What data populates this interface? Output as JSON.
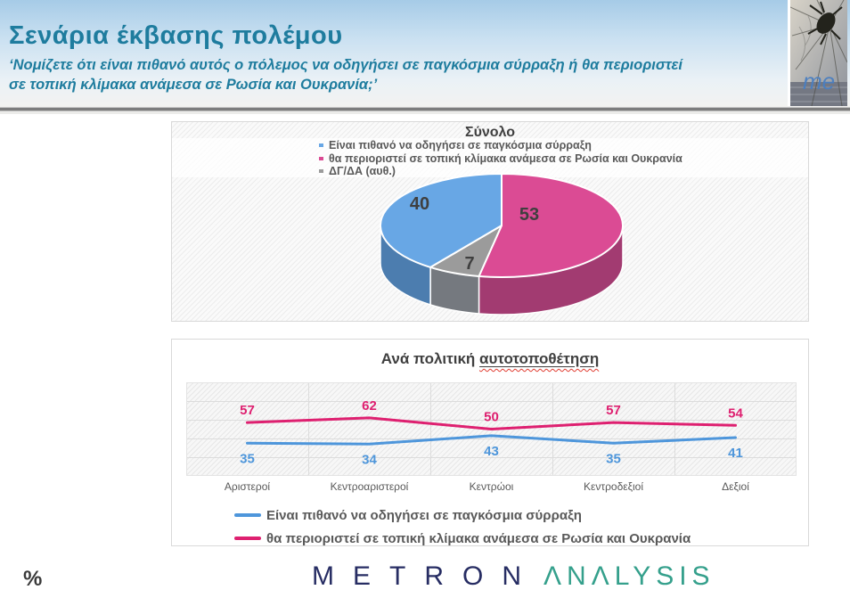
{
  "header": {
    "title": "Σενάρια έκβασης πολέμου",
    "subtitle": "‘Νομίζετε ότι είναι πιθανό αυτός ο πόλεμος να οδηγήσει σε παγκόσμια σύρραξη ή θα περιοριστεί σε τοπική κλίμακα ανάμεσα σε Ρωσία και Ουκρανία;’",
    "logo_text": "me"
  },
  "percent_symbol": "%",
  "chart_data": [
    {
      "type": "pie",
      "style": "3d",
      "title": "Σύνολο",
      "slices": [
        {
          "label": "Είναι πιθανό να οδηγήσει σε παγκόσμια σύρραξη",
          "value": 40,
          "color": "#68A7E5",
          "side_color": "#4C7DAF"
        },
        {
          "label": "θα περιοριστεί σε τοπική κλίμακα ανάμεσα σε Ρωσία και Ουκρανία",
          "value": 53,
          "color": "#DB4B94",
          "side_color": "#A23B71"
        },
        {
          "label": "ΔΓ/ΔΑ (αυθ.)",
          "value": 7,
          "color": "#9B9B9B",
          "side_color": "#75797F"
        }
      ],
      "draw_sequence": [
        1,
        2,
        0
      ],
      "labels_color": "#3F3F3F",
      "legend_position": "top"
    },
    {
      "type": "line",
      "title_prefix": "Ανά πολιτική ",
      "title_underlined": "αυτοτοποθέτηση",
      "categories": [
        "Αριστεροί",
        "Κεντροαριστεροί",
        "Κεντρώοι",
        "Κεντροδεξιοί",
        "Δεξιοί"
      ],
      "series": [
        {
          "name": "Είναι πιθανό να οδηγήσει σε παγκόσμια σύρραξη",
          "color": "#4E96DB",
          "values": [
            35,
            34,
            43,
            35,
            41
          ],
          "label_position": "below"
        },
        {
          "name": "θα περιοριστεί σε τοπική κλίμακα ανάμεσα σε Ρωσία και Ουκρανία",
          "color": "#DE2070",
          "values": [
            57,
            62,
            50,
            57,
            54
          ],
          "label_position": "above"
        }
      ],
      "ylim": [
        0,
        100
      ],
      "grid": "horizontal+vertical",
      "legend_position": "bottom-left"
    }
  ],
  "footer": {
    "brand_primary": "METRON",
    "brand_secondary": "ΛNΛLYSIS"
  }
}
